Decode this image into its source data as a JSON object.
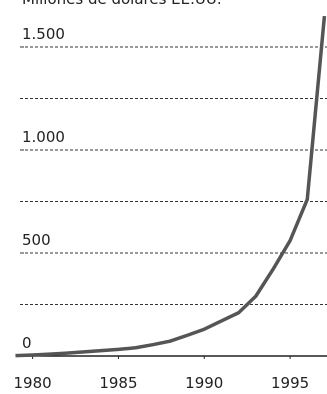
{
  "chart_data": {
    "type": "line",
    "title": "Millones de dólares EE.UU.",
    "x": [
      1979,
      1980,
      1981,
      1982,
      1983,
      1984,
      1985,
      1986,
      1987,
      1988,
      1989,
      1990,
      1991,
      1992,
      1993,
      1994,
      1995,
      1996,
      1997
    ],
    "values": [
      2,
      5,
      9,
      14,
      20,
      26,
      32,
      40,
      55,
      72,
      100,
      130,
      170,
      210,
      290,
      420,
      560,
      760,
      1650
    ],
    "color": "#555555",
    "xlim": [
      1978.1,
      1997.15
    ],
    "xticks": [
      1980,
      1985,
      1990,
      1995
    ],
    "ylim": [
      0,
      1728
    ],
    "yticks": [
      0,
      500,
      {
        "value": 1000,
        "label": "1.000"
      },
      {
        "value": 1500,
        "label": "1.500"
      }
    ],
    "ygrid": [
      250,
      500,
      750,
      1000,
      1250,
      1500
    ],
    "grid": true
  }
}
